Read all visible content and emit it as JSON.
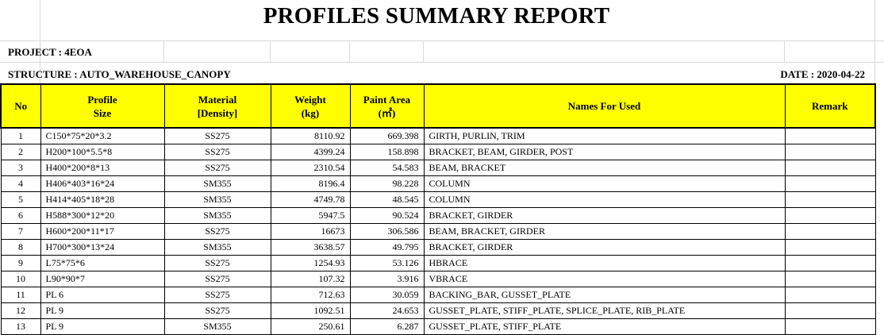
{
  "report": {
    "title": "PROFILES SUMMARY REPORT",
    "project_line": "PROJECT : 4EOA",
    "structure_line": "STRUCTURE : AUTO_WAREHOUSE_CANOPY",
    "date_line": "DATE : 2020-04-22"
  },
  "columns": {
    "no": "No",
    "profile_l1": "Profile",
    "profile_l2": "Size",
    "material_l1": "Material",
    "material_l2": "[Density]",
    "weight_l1": "Weight",
    "weight_l2": "(kg)",
    "paint_l1": "Paint Area",
    "paint_l2": "(㎡)",
    "names": "Names For Used",
    "remark": "Remark"
  },
  "rows": [
    {
      "no": "1",
      "profile": "C150*75*20*3.2",
      "material": "SS275",
      "weight": "8110.92",
      "paint": "669.398",
      "names": "GIRTH, PURLIN, TRIM",
      "remark": ""
    },
    {
      "no": "2",
      "profile": "H200*100*5.5*8",
      "material": "SS275",
      "weight": "4399.24",
      "paint": "158.898",
      "names": "BRACKET, BEAM, GIRDER, POST",
      "remark": ""
    },
    {
      "no": "3",
      "profile": "H400*200*8*13",
      "material": "SS275",
      "weight": "2310.54",
      "paint": "54.583",
      "names": "BEAM, BRACKET",
      "remark": ""
    },
    {
      "no": "4",
      "profile": "H406*403*16*24",
      "material": "SM355",
      "weight": "8196.4",
      "paint": "98.228",
      "names": "COLUMN",
      "remark": ""
    },
    {
      "no": "5",
      "profile": "H414*405*18*28",
      "material": "SM355",
      "weight": "4749.78",
      "paint": "48.545",
      "names": "COLUMN",
      "remark": ""
    },
    {
      "no": "6",
      "profile": "H588*300*12*20",
      "material": "SM355",
      "weight": "5947.5",
      "paint": "90.524",
      "names": "BRACKET, GIRDER",
      "remark": ""
    },
    {
      "no": "7",
      "profile": "H600*200*11*17",
      "material": "SS275",
      "weight": "16673",
      "paint": "306.586",
      "names": "BEAM, BRACKET, GIRDER",
      "remark": ""
    },
    {
      "no": "8",
      "profile": "H700*300*13*24",
      "material": "SM355",
      "weight": "3638.57",
      "paint": "49.795",
      "names": "BRACKET, GIRDER",
      "remark": ""
    },
    {
      "no": "9",
      "profile": "L75*75*6",
      "material": "SS275",
      "weight": "1254.93",
      "paint": "53.126",
      "names": "HBRACE",
      "remark": ""
    },
    {
      "no": "10",
      "profile": "L90*90*7",
      "material": "SS275",
      "weight": "107.32",
      "paint": "3.916",
      "names": "VBRACE",
      "remark": ""
    },
    {
      "no": "11",
      "profile": "PL 6",
      "material": "SS275",
      "weight": "712.63",
      "paint": "30.059",
      "names": "BACKING_BAR, GUSSET_PLATE",
      "remark": ""
    },
    {
      "no": "12",
      "profile": "PL 9",
      "material": "SS275",
      "weight": "1092.51",
      "paint": "24.653",
      "names": "GUSSET_PLATE, STIFF_PLATE, SPLICE_PLATE, RIB_PLATE",
      "remark": ""
    },
    {
      "no": "13",
      "profile": "PL 9",
      "material": "SM355",
      "weight": "250.61",
      "paint": "6.287",
      "names": "GUSSET_PLATE, STIFF_PLATE",
      "remark": ""
    }
  ]
}
